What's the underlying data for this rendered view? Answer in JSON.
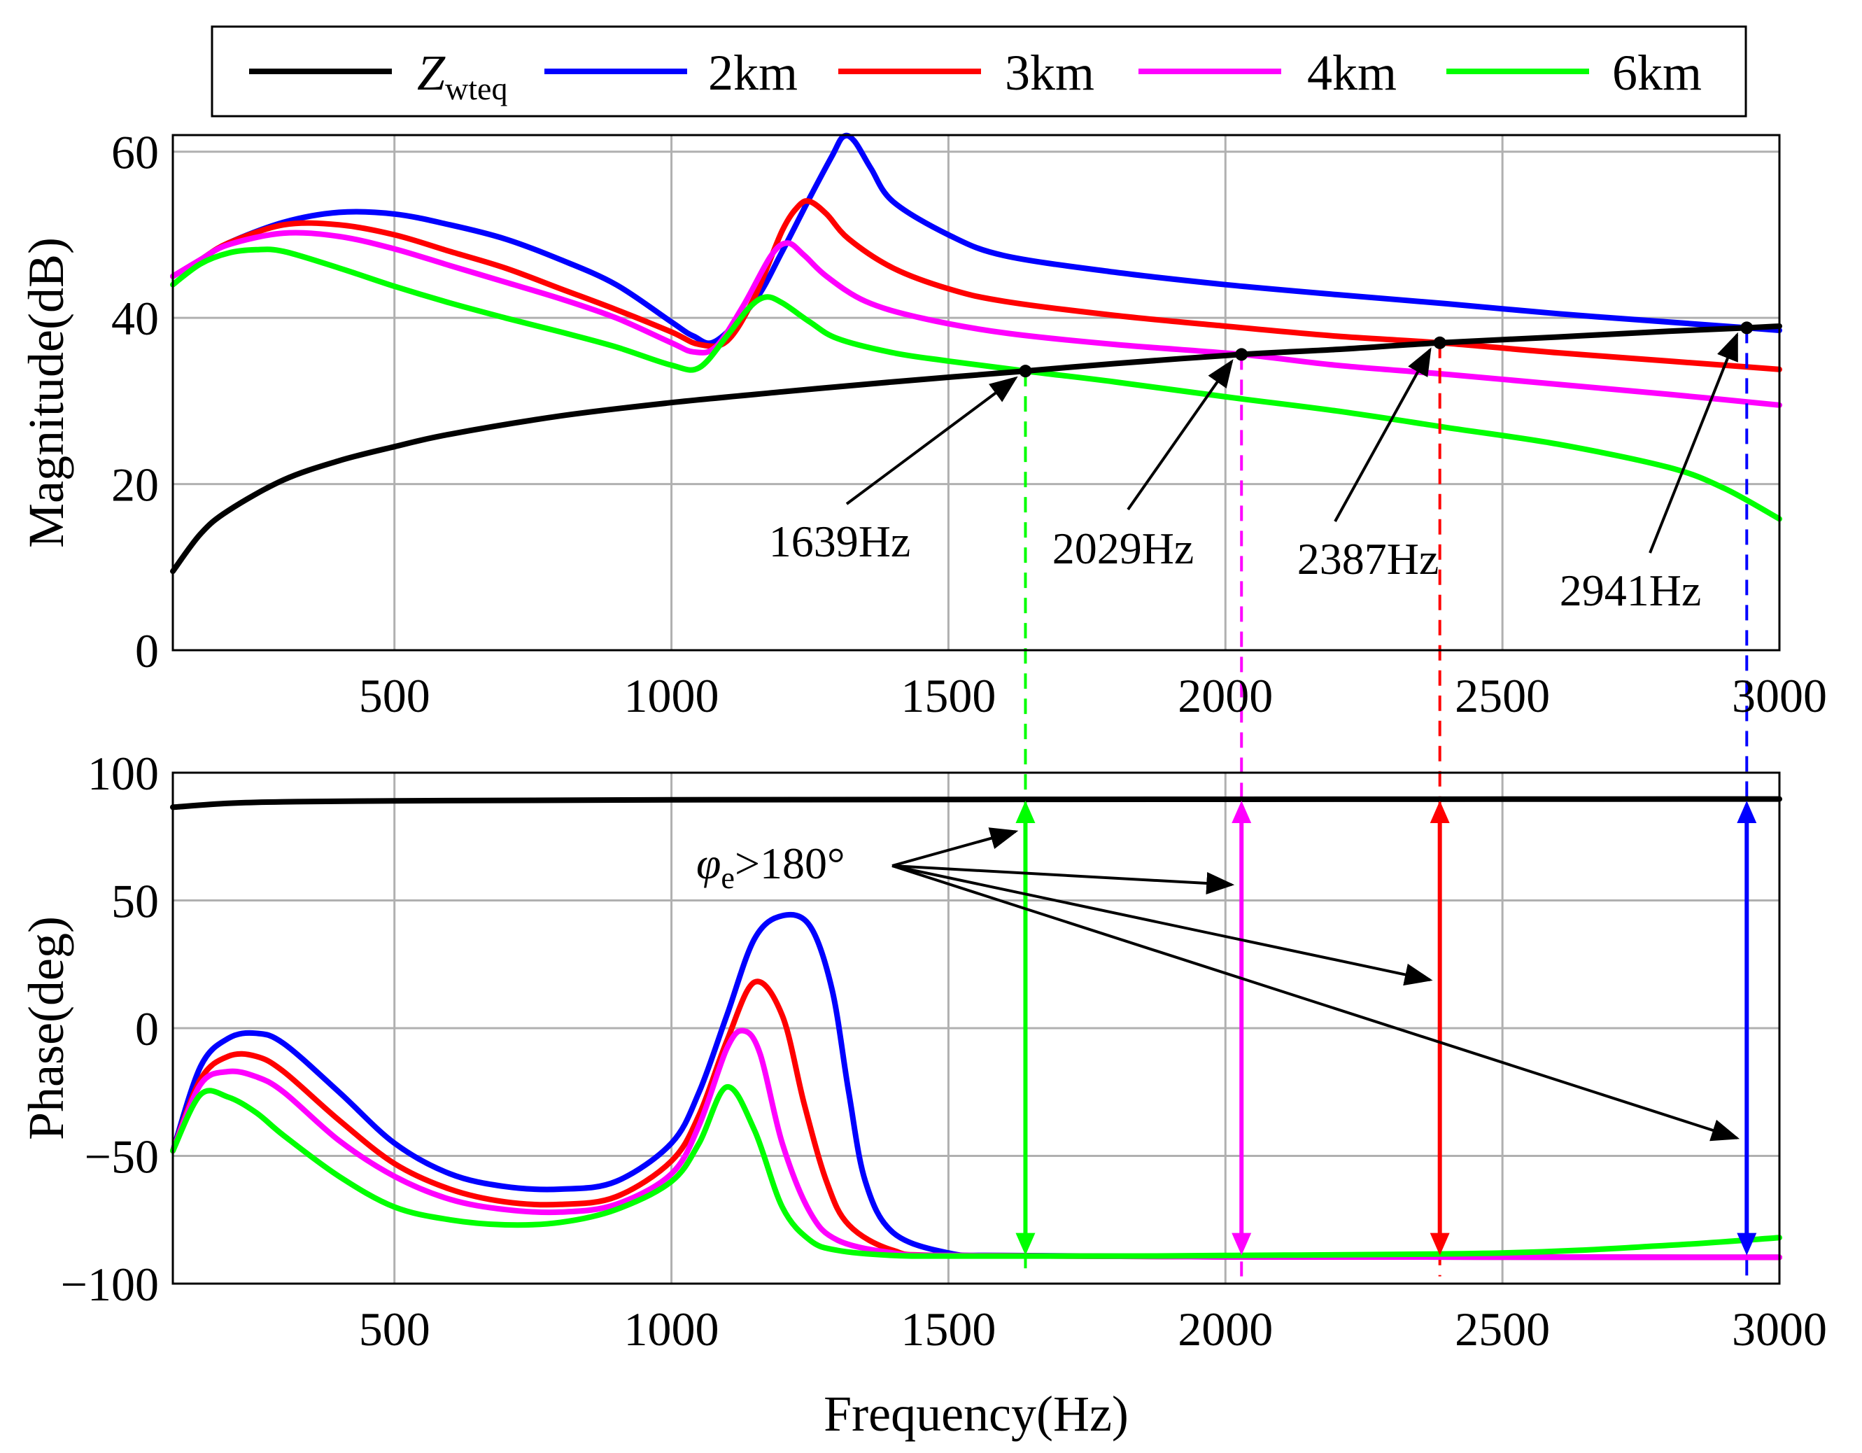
{
  "chart_data": [
    {
      "type": "line",
      "panel": "magnitude",
      "xlabel": "Frequency(Hz)",
      "ylabel": "Magnitude(dB)",
      "xlim": [
        100,
        3000
      ],
      "ylim": [
        0,
        62
      ],
      "xticks": [
        500,
        1000,
        1500,
        2000,
        2500,
        3000
      ],
      "yticks": [
        0,
        20,
        40,
        60
      ],
      "grid": true,
      "series": [
        {
          "name": "Zwteq",
          "color": "#000000",
          "x": [
            100,
            150,
            200,
            300,
            400,
            500,
            600,
            800,
            1000,
            1200,
            1400,
            1639,
            1800,
            2029,
            2200,
            2387,
            2600,
            2800,
            2941,
            3000
          ],
          "y": [
            9.5,
            14,
            16.8,
            20.5,
            22.8,
            24.5,
            26,
            28.2,
            29.8,
            31.1,
            32.3,
            33.6,
            34.5,
            35.6,
            36.2,
            37,
            37.7,
            38.4,
            38.8,
            39
          ]
        },
        {
          "name": "2km",
          "color": "#0000ff",
          "x": [
            100,
            150,
            200,
            300,
            400,
            500,
            600,
            700,
            800,
            900,
            1000,
            1040,
            1080,
            1150,
            1200,
            1250,
            1290,
            1310,
            1330,
            1360,
            1400,
            1500,
            1600,
            1800,
            2000,
            2200,
            2400,
            2600,
            2800,
            2941,
            3000
          ],
          "y": [
            45,
            47,
            49,
            51.5,
            52.7,
            52.5,
            51.2,
            49.5,
            47,
            44,
            39.5,
            37.8,
            37.2,
            42,
            48,
            54.5,
            59.5,
            61.8,
            61.3,
            58,
            54,
            50,
            47.5,
            45.5,
            44,
            42.8,
            41.7,
            40.5,
            39.5,
            38.8,
            38.5
          ]
        },
        {
          "name": "3km",
          "color": "#ff0000",
          "x": [
            100,
            150,
            200,
            300,
            400,
            500,
            600,
            700,
            800,
            900,
            1000,
            1050,
            1100,
            1150,
            1200,
            1230,
            1250,
            1280,
            1320,
            1400,
            1500,
            1600,
            1800,
            2000,
            2200,
            2387,
            2600,
            2800,
            3000
          ],
          "y": [
            45,
            47,
            49,
            51.2,
            51.2,
            50,
            48,
            46,
            43.5,
            41,
            38.3,
            36.8,
            37.2,
            42.5,
            50.5,
            53.5,
            54,
            52.5,
            49.5,
            46,
            43.5,
            42,
            40.3,
            39,
            37.8,
            37,
            35.8,
            34.8,
            33.8
          ]
        },
        {
          "name": "4km",
          "color": "#ff00ff",
          "x": [
            100,
            150,
            200,
            300,
            400,
            500,
            600,
            700,
            800,
            900,
            1000,
            1040,
            1080,
            1130,
            1180,
            1210,
            1240,
            1280,
            1350,
            1450,
            1600,
            1800,
            2029,
            2200,
            2400,
            2600,
            2800,
            3000
          ],
          "y": [
            45,
            47,
            48.8,
            50.2,
            49.8,
            48.3,
            46.3,
            44.3,
            42.3,
            40,
            37,
            35.9,
            36.5,
            41.5,
            47.5,
            49,
            47.5,
            45,
            42,
            40,
            38.2,
            36.8,
            35.6,
            34.3,
            33.2,
            32,
            30.8,
            29.5
          ]
        },
        {
          "name": "6km",
          "color": "#00ff00",
          "x": [
            100,
            150,
            200,
            250,
            300,
            400,
            500,
            600,
            700,
            800,
            900,
            1000,
            1050,
            1100,
            1140,
            1170,
            1200,
            1250,
            1300,
            1400,
            1500,
            1639,
            1800,
            2000,
            2200,
            2400,
            2600,
            2800,
            2900,
            3000
          ],
          "y": [
            44,
            46.5,
            47.8,
            48.2,
            48,
            46,
            43.8,
            41.8,
            40,
            38.3,
            36.5,
            34.3,
            34,
            37.8,
            41.2,
            42.5,
            41.8,
            39.5,
            37.5,
            35.8,
            34.8,
            33.6,
            32.3,
            30.5,
            28.8,
            26.8,
            24.8,
            22,
            19.5,
            15.8
          ]
        }
      ],
      "intersections": [
        {
          "x": 1639,
          "y": 33.6,
          "color": "#00ff00",
          "label": "1639Hz"
        },
        {
          "x": 2029,
          "y": 35.6,
          "color": "#ff00ff",
          "label": "2029Hz"
        },
        {
          "x": 2387,
          "y": 37.0,
          "color": "#ff0000",
          "label": "2387Hz"
        },
        {
          "x": 2941,
          "y": 38.8,
          "color": "#0000ff",
          "label": "2941Hz"
        }
      ]
    },
    {
      "type": "line",
      "panel": "phase",
      "xlabel": "Frequency(Hz)",
      "ylabel": "Phase(deg)",
      "xlim": [
        100,
        3000
      ],
      "ylim": [
        -100,
        100
      ],
      "xticks": [
        500,
        1000,
        1500,
        2000,
        2500,
        3000
      ],
      "yticks": [
        -100,
        -50,
        0,
        50,
        100
      ],
      "grid": true,
      "series": [
        {
          "name": "Zwteq",
          "color": "#000000",
          "x": [
            100,
            200,
            300,
            500,
            1000,
            2000,
            3000
          ],
          "y": [
            86.5,
            88,
            88.6,
            89,
            89.4,
            89.6,
            89.7
          ]
        },
        {
          "name": "2km",
          "color": "#0000ff",
          "x": [
            100,
            150,
            200,
            250,
            300,
            400,
            500,
            600,
            700,
            800,
            900,
            1000,
            1050,
            1100,
            1150,
            1200,
            1250,
            1290,
            1320,
            1350,
            1400,
            1500,
            1600,
            2000,
            3000
          ],
          "y": [
            -48,
            -15,
            -4,
            -2,
            -6,
            -25,
            -45,
            -57,
            -62,
            -63,
            -60,
            -45,
            -25,
            5,
            35,
            44,
            40,
            15,
            -25,
            -60,
            -80,
            -88,
            -89,
            -89.5,
            -89.7
          ]
        },
        {
          "name": "3km",
          "color": "#ff0000",
          "x": [
            100,
            150,
            200,
            250,
            300,
            400,
            500,
            600,
            700,
            800,
            900,
            1000,
            1050,
            1100,
            1150,
            1200,
            1240,
            1280,
            1320,
            1400,
            1500,
            2000,
            3000
          ],
          "y": [
            -48,
            -20,
            -11,
            -11,
            -17,
            -36,
            -53,
            -63,
            -68,
            -69,
            -66,
            -52,
            -34,
            -5,
            18,
            5,
            -30,
            -60,
            -77,
            -87,
            -89,
            -89.5,
            -89.7
          ]
        },
        {
          "name": "4km",
          "color": "#ff00ff",
          "x": [
            100,
            150,
            200,
            250,
            300,
            400,
            500,
            600,
            700,
            800,
            900,
            1000,
            1050,
            1100,
            1130,
            1160,
            1200,
            1250,
            1300,
            1400,
            1500,
            2000,
            3000
          ],
          "y": [
            -48,
            -22,
            -17,
            -19,
            -25,
            -44,
            -58,
            -67,
            -71,
            -72,
            -69,
            -57,
            -38,
            -8,
            -1,
            -10,
            -45,
            -72,
            -83,
            -88,
            -89,
            -89.5,
            -89.7
          ]
        },
        {
          "name": "6km",
          "color": "#00ff00",
          "x": [
            100,
            150,
            200,
            250,
            300,
            400,
            500,
            600,
            700,
            800,
            900,
            1000,
            1050,
            1100,
            1150,
            1200,
            1250,
            1300,
            1400,
            1500,
            1800,
            2000,
            2500,
            2800,
            3000
          ],
          "y": [
            -48,
            -26,
            -27,
            -33,
            -42,
            -58,
            -70,
            -75,
            -77,
            -76,
            -71,
            -60,
            -45,
            -23,
            -40,
            -70,
            -83,
            -87,
            -89,
            -89.2,
            -89.2,
            -89,
            -88,
            -85,
            -82
          ]
        }
      ],
      "annotation": "φe>180°"
    }
  ],
  "legend": [
    {
      "label": "Zwteq",
      "main": "Z",
      "sub": "wteq",
      "color": "#000000"
    },
    {
      "label": "2km",
      "color": "#0000ff"
    },
    {
      "label": "3km",
      "color": "#ff0000"
    },
    {
      "label": "4km",
      "color": "#ff00ff"
    },
    {
      "label": "6km",
      "color": "#00ff00"
    }
  ],
  "phase_annotation": {
    "symbol": "φ",
    "sub": "e",
    "rest": ">180°"
  }
}
